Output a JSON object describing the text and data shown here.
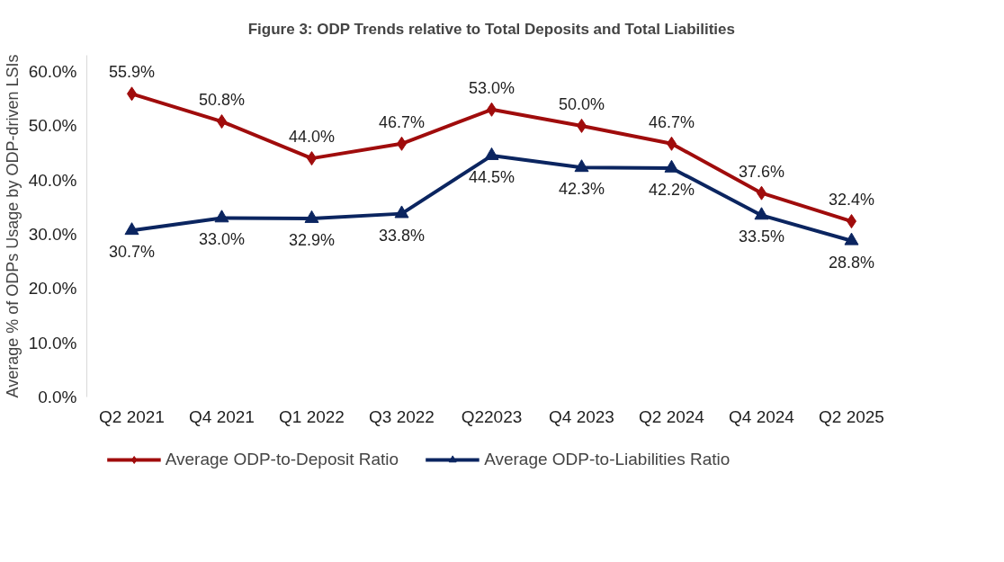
{
  "chart_data": {
    "type": "line",
    "title": "Figure 3: ODP Trends relative to Total Deposits and Total Liabilities",
    "ylabel": "Average % of ODPs Usage by ODP-driven LSIs",
    "categories": [
      "Q2 2021",
      "Q4 2021",
      "Q1 2022",
      "Q3 2022",
      "Q22023",
      "Q4 2023",
      "Q2 2024",
      "Q4 2024",
      "Q2 2025"
    ],
    "series": [
      {
        "name": "Average ODP-to-Deposit Ratio",
        "color": "#a00c0c",
        "marker": "diamond",
        "values": [
          55.9,
          50.8,
          44.0,
          46.7,
          53.0,
          50.0,
          46.7,
          37.6,
          32.4
        ],
        "value_labels": [
          "55.9%",
          "50.8%",
          "44.0%",
          "46.7%",
          "53.0%",
          "50.0%",
          "46.7%",
          "37.6%",
          "32.4%"
        ]
      },
      {
        "name": "Average ODP-to-Liabilities Ratio",
        "color": "#0b2560",
        "marker": "triangle",
        "values": [
          30.7,
          33.0,
          32.9,
          33.8,
          44.5,
          42.3,
          42.2,
          33.5,
          28.8
        ],
        "value_labels": [
          "30.7%",
          "33.0%",
          "32.9%",
          "33.8%",
          "44.5%",
          "42.3%",
          "42.2%",
          "33.5%",
          "28.8%"
        ]
      }
    ],
    "ylim": [
      0,
      63
    ],
    "yticks": [
      {
        "value": 0,
        "label": "0.0%"
      },
      {
        "value": 10,
        "label": "10.0%"
      },
      {
        "value": 20,
        "label": "20.0%"
      },
      {
        "value": 30,
        "label": "30.0%"
      },
      {
        "value": 40,
        "label": "40.0%"
      },
      {
        "value": 50,
        "label": "50.0%"
      },
      {
        "value": 60,
        "label": "60.0%"
      }
    ],
    "grid": false,
    "legend": "bottom",
    "line_style": "solid"
  }
}
